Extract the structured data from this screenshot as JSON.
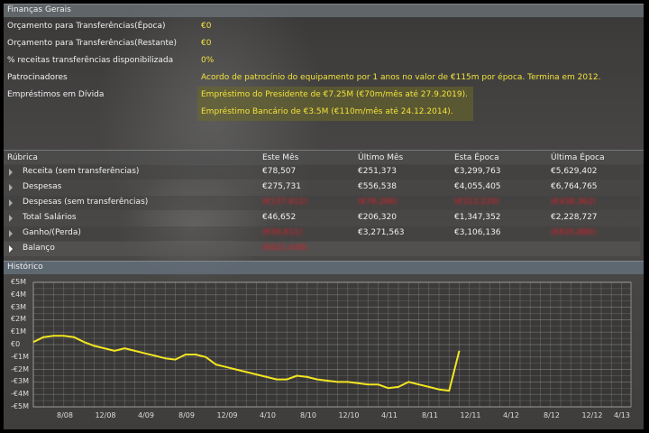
{
  "general": {
    "title": "Finanças Gerais",
    "rows": [
      {
        "label": "Orçamento para Transferências(Época)",
        "value": "€0"
      },
      {
        "label": "Orçamento para Transferências(Restante)",
        "value": "€0"
      },
      {
        "label": "% receitas transferências disponibilizada",
        "value": "0%"
      },
      {
        "label": "Patrocinadores",
        "value": "Acordo de patrocínio do equipamento por 1 anos no valor de €115m por época. Termina em 2012."
      },
      {
        "label": "Empréstimos em Dívida",
        "value": "Empréstimo do Presidente de €7.25M (€70m/mês até 27.9.2019)."
      }
    ],
    "loan_2": "Empréstimo Bancário de €3.5M (€110m/mês até 24.12.2014)."
  },
  "table": {
    "headers": [
      "Rúbrica",
      "Este Mês",
      "Último Mês",
      "Esta Época",
      "Última Época"
    ],
    "rows": [
      {
        "name": "Receita (sem transferências)",
        "cells": [
          "€78,507",
          "€251,373",
          "€3,299,763",
          "€5,629,402"
        ],
        "neg": [
          false,
          false,
          false,
          false
        ]
      },
      {
        "name": "Despesas",
        "cells": [
          "€275,731",
          "€556,538",
          "€4,055,405",
          "€6,764,765"
        ],
        "neg": [
          false,
          false,
          false,
          false
        ]
      },
      {
        "name": "Despesas (sem transferências)",
        "cells": [
          "(€137,612)",
          "(€76,286)",
          "(€313,229)",
          "(€438,362)"
        ],
        "neg": [
          true,
          true,
          true,
          true
        ]
      },
      {
        "name": "Total Salários",
        "cells": [
          "€46,652",
          "€206,320",
          "€1,347,352",
          "€2,228,727"
        ],
        "neg": [
          false,
          false,
          false,
          false
        ]
      },
      {
        "name": "Ganho/(Perda)",
        "cells": [
          "(€59,811)",
          "€3,271,563",
          "€3,106,136",
          "(€835,880)"
        ],
        "neg": [
          true,
          false,
          false,
          true
        ]
      },
      {
        "name": "Balanço",
        "cells": [
          "(€621,438)",
          "",
          "",
          ""
        ],
        "neg": [
          true,
          false,
          false,
          false
        ]
      }
    ]
  },
  "history": {
    "title": "Histórico"
  },
  "chart_data": {
    "type": "line",
    "title": "Histórico",
    "xlabel": "",
    "ylabel": "",
    "ylim": [
      -5,
      5
    ],
    "y_unit": "€M",
    "y_ticks": [
      "€5M",
      "€4M",
      "€3M",
      "€2M",
      "€1M",
      "€0",
      "-€1M",
      "-€2M",
      "-€3M",
      "-€4M",
      "-€5M"
    ],
    "x_ticks": [
      "8/08",
      "12/08",
      "4/09",
      "8/09",
      "12/09",
      "4/10",
      "8/10",
      "12/10",
      "4/11",
      "8/11",
      "12/11",
      "4/12",
      "8/12",
      "12/12",
      "4/13"
    ],
    "grid": true,
    "line_color": "#f2e520",
    "series": [
      {
        "name": "Balanço",
        "x_month_index": [
          0,
          1,
          2,
          3,
          4,
          5,
          6,
          7,
          8,
          9,
          10,
          11,
          12,
          13,
          14,
          15,
          16,
          17,
          18,
          19,
          20,
          21,
          22,
          23,
          24,
          25,
          26,
          27,
          28,
          29,
          30,
          31,
          32,
          33,
          34,
          35,
          36,
          37,
          38,
          39,
          40,
          41,
          42,
          43
        ],
        "values": [
          0.2,
          0.6,
          0.7,
          0.7,
          0.6,
          0.2,
          -0.1,
          -0.3,
          -0.5,
          -0.3,
          -0.5,
          -0.7,
          -0.9,
          -1.1,
          -1.2,
          -0.8,
          -0.8,
          -1.0,
          -1.6,
          -1.8,
          -2.0,
          -2.2,
          -2.4,
          -2.6,
          -2.8,
          -2.8,
          -2.5,
          -2.6,
          -2.8,
          -2.9,
          -3.0,
          -3.0,
          -3.1,
          -3.2,
          -3.2,
          -3.5,
          -3.4,
          -3.0,
          -3.2,
          -3.4,
          -3.6,
          -3.7,
          -0.5,
          null
        ]
      }
    ]
  }
}
